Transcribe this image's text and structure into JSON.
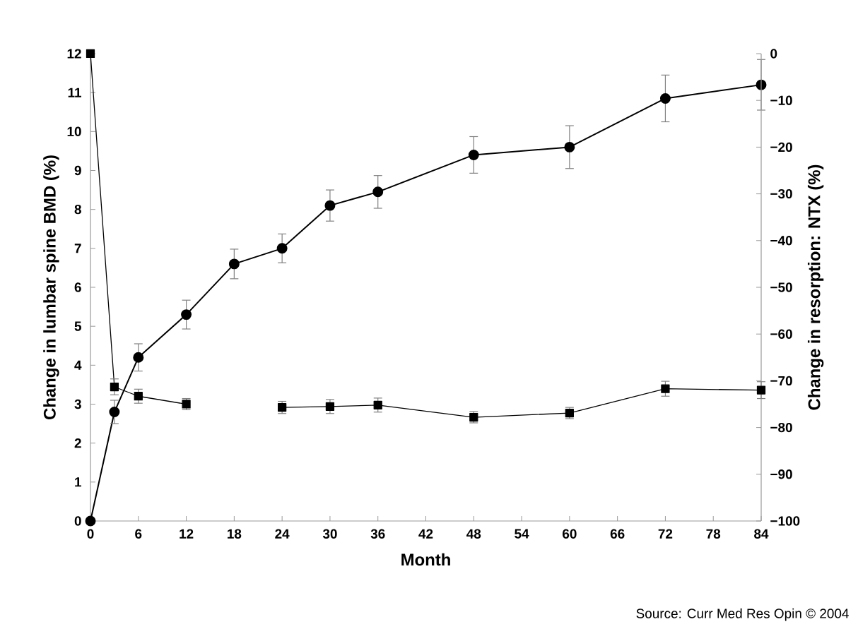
{
  "chart_data": {
    "type": "line",
    "xlabel": "Month",
    "ylabel": "Change in lumbar spine BMD (%)",
    "y2label": "Change in resorption: NTX (%)",
    "x": [
      0,
      3,
      6,
      12,
      18,
      24,
      30,
      36,
      48,
      60,
      72,
      84
    ],
    "series": [
      {
        "color": "#000000",
        "marker": "circle",
        "values": [
          0,
          2.8,
          4.2,
          5.3,
          6.6,
          7.0,
          8.1,
          8.45,
          9.4,
          9.6,
          10.85,
          11.2
        ],
        "errors": [
          null,
          0.3,
          0.35,
          0.37,
          0.38,
          0.37,
          0.4,
          0.42,
          0.47,
          0.55,
          0.6,
          0.65
        ]
      },
      {
        "color": "#000000",
        "marker": "square",
        "axis": "y2",
        "values": [
          0,
          -71.3,
          -73.3,
          -75,
          null,
          -75.7,
          -75.5,
          -75.2,
          -77.8,
          -76.9,
          -71.7,
          -72
        ],
        "errors": [
          null,
          1.7,
          1.5,
          1.2,
          null,
          1.3,
          1.5,
          1.5,
          1.2,
          1.2,
          1.6,
          1.8
        ]
      }
    ],
    "xlim": [
      0,
      84
    ],
    "xticks": [
      0,
      6,
      12,
      18,
      24,
      30,
      36,
      42,
      48,
      54,
      60,
      66,
      72,
      78,
      84
    ],
    "ylim": [
      0,
      12
    ],
    "yticks": [
      0,
      1,
      2,
      3,
      4,
      5,
      6,
      7,
      8,
      9,
      10,
      11,
      12
    ],
    "y2lim": [
      -100,
      0
    ],
    "y2ticks": [
      {
        "value": -100,
        "label": "−100"
      },
      {
        "value": -90,
        "label": "−90"
      },
      {
        "value": -80,
        "label": "−80"
      },
      {
        "value": -70,
        "label": "−70"
      },
      {
        "value": -60,
        "label": "−60"
      },
      {
        "value": -50,
        "label": "−50"
      },
      {
        "value": -40,
        "label": "−40"
      },
      {
        "value": -30,
        "label": "−30"
      },
      {
        "value": -20,
        "label": "−20"
      },
      {
        "value": -10,
        "label": "−10"
      },
      0
    ],
    "line_style": "solid",
    "annotations": [
      "Source: Curr Med Res Opin © 2004"
    ]
  }
}
